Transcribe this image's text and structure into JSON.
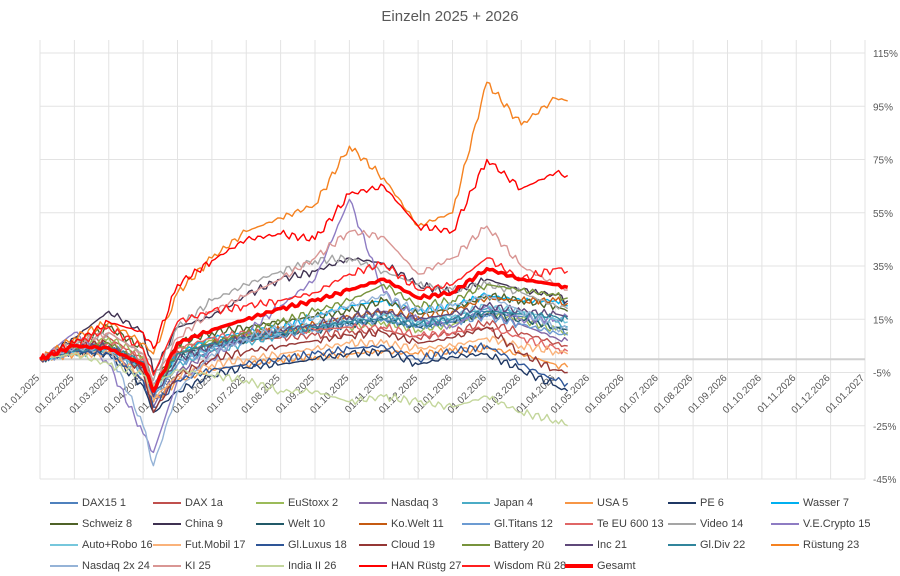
{
  "chart_data": {
    "type": "line",
    "title": "Einzeln 2025 + 2026",
    "xlabel": "",
    "ylabel": "",
    "ylim": [
      -45,
      115
    ],
    "yticks": [
      "115%",
      "95%",
      "75%",
      "55%",
      "35%",
      "15%",
      "-5%",
      "-25%",
      "-45%"
    ],
    "ytick_values": [
      115,
      95,
      75,
      55,
      35,
      15,
      -5,
      -25,
      -45
    ],
    "xticks": [
      "01.01.2025",
      "01.02.2025",
      "01.03.2025",
      "01.04.2025",
      "01.05.2025",
      "01.06.2025",
      "01.07.2025",
      "01.08.2025",
      "01.09.2025",
      "01.10.2025",
      "01.11.2025",
      "01.12.2025",
      "01.01.2026",
      "01.02.2026",
      "01.03.2026",
      "01.04.2026",
      "01.05.2026",
      "01.06.2026",
      "01.07.2026",
      "01.08.2026",
      "01.09.2026",
      "01.10.2026",
      "01.11.2026",
      "01.12.2026",
      "01.01.2027"
    ],
    "x_months": [
      0,
      1,
      2,
      3,
      3.3,
      4,
      5,
      6,
      7,
      8,
      9,
      10,
      11,
      12,
      13,
      14,
      15,
      15.35
    ],
    "grid": true,
    "legend_position": "bottom",
    "series": [
      {
        "name": "DAX15  1",
        "color": "#4f81bd",
        "values": [
          0,
          4,
          6,
          -3,
          -10,
          2,
          6,
          8,
          10,
          12,
          14,
          15,
          12,
          14,
          18,
          16,
          12,
          10
        ]
      },
      {
        "name": "DAX  1a",
        "color": "#c0504d",
        "values": [
          0,
          5,
          8,
          0,
          -12,
          3,
          6,
          7,
          8,
          9,
          10,
          11,
          8,
          10,
          14,
          10,
          6,
          5
        ]
      },
      {
        "name": "EuStoxx 2",
        "color": "#9bbb59",
        "values": [
          0,
          4,
          8,
          1,
          -10,
          4,
          7,
          8,
          10,
          11,
          12,
          14,
          11,
          13,
          17,
          15,
          11,
          10
        ]
      },
      {
        "name": "Nasdaq 3",
        "color": "#8064a2",
        "values": [
          0,
          3,
          4,
          -8,
          -18,
          -5,
          3,
          8,
          10,
          12,
          15,
          18,
          14,
          15,
          17,
          13,
          8,
          7
        ]
      },
      {
        "name": "Japan 4",
        "color": "#4bacc6",
        "values": [
          0,
          2,
          3,
          -5,
          -14,
          -2,
          3,
          6,
          9,
          12,
          14,
          17,
          14,
          16,
          19,
          17,
          14,
          12
        ]
      },
      {
        "name": "USA 5",
        "color": "#f79646",
        "values": [
          0,
          2,
          3,
          -8,
          -16,
          -8,
          -4,
          -2,
          0,
          1,
          2,
          3,
          2,
          3,
          4,
          2,
          -2,
          -3
        ]
      },
      {
        "name": "PE 6",
        "color": "#1f3864",
        "values": [
          0,
          3,
          2,
          -10,
          -20,
          -12,
          -6,
          -3,
          -2,
          0,
          2,
          3,
          -2,
          1,
          2,
          -4,
          -10,
          -12
        ]
      },
      {
        "name": "Wasser  7",
        "color": "#00b0f0",
        "values": [
          0,
          3,
          4,
          -2,
          -10,
          2,
          8,
          10,
          12,
          16,
          20,
          22,
          18,
          20,
          24,
          22,
          22,
          20
        ]
      },
      {
        "name": "Schweiz 8",
        "color": "#4f6228",
        "values": [
          0,
          6,
          12,
          4,
          -10,
          6,
          10,
          12,
          14,
          16,
          18,
          22,
          17,
          19,
          24,
          22,
          20,
          18
        ]
      },
      {
        "name": "China  9",
        "color": "#3f3151",
        "values": [
          0,
          8,
          18,
          10,
          -5,
          12,
          16,
          24,
          30,
          33,
          38,
          36,
          28,
          25,
          30,
          26,
          24,
          22
        ]
      },
      {
        "name": "Welt 10",
        "color": "#215968",
        "values": [
          0,
          3,
          4,
          -3,
          -12,
          0,
          5,
          7,
          9,
          11,
          13,
          15,
          12,
          14,
          17,
          15,
          12,
          11
        ]
      },
      {
        "name": "Ko.Welt 11",
        "color": "#c55a11",
        "values": [
          0,
          3,
          4,
          -2,
          -12,
          2,
          6,
          9,
          11,
          13,
          16,
          18,
          16,
          18,
          23,
          22,
          22,
          21
        ]
      },
      {
        "name": "Gl.Titans 12",
        "color": "#6c9bd2",
        "values": [
          0,
          3,
          4,
          -5,
          -15,
          -2,
          4,
          7,
          9,
          11,
          13,
          15,
          12,
          14,
          16,
          13,
          10,
          9
        ]
      },
      {
        "name": "Te EU 600 13",
        "color": "#e06666",
        "values": [
          0,
          4,
          6,
          0,
          -10,
          4,
          8,
          10,
          10,
          11,
          12,
          12,
          9,
          10,
          12,
          8,
          4,
          3
        ]
      },
      {
        "name": "Video 14",
        "color": "#a5a5a5",
        "values": [
          0,
          6,
          10,
          2,
          -8,
          12,
          22,
          28,
          33,
          37,
          38,
          33,
          28,
          26,
          28,
          25,
          20,
          19
        ]
      },
      {
        "name": "V.E.Crypto 15",
        "color": "#8e7cc3",
        "values": [
          0,
          10,
          -2,
          -28,
          -35,
          -8,
          0,
          10,
          20,
          30,
          60,
          25,
          15,
          12,
          20,
          15,
          15,
          16
        ]
      },
      {
        "name": "Auto+Robo 16",
        "color": "#76c7dc",
        "values": [
          0,
          3,
          4,
          -4,
          -13,
          0,
          5,
          8,
          10,
          13,
          15,
          17,
          14,
          16,
          20,
          18,
          15,
          14
        ]
      },
      {
        "name": "Fut.Mobil 17",
        "color": "#fab27a",
        "values": [
          0,
          2,
          2,
          -6,
          -15,
          -6,
          -2,
          0,
          2,
          4,
          6,
          6,
          4,
          5,
          8,
          5,
          3,
          2
        ]
      },
      {
        "name": "Gl.Luxus 18",
        "color": "#2e5597",
        "values": [
          0,
          3,
          2,
          -8,
          -18,
          -8,
          -4,
          -2,
          0,
          2,
          4,
          5,
          0,
          3,
          5,
          -2,
          -8,
          -9
        ]
      },
      {
        "name": "Cloud 19",
        "color": "#953735",
        "values": [
          0,
          5,
          6,
          -5,
          -20,
          -6,
          0,
          3,
          5,
          7,
          9,
          10,
          6,
          8,
          12,
          2,
          -4,
          -5
        ]
      },
      {
        "name": "Battery 20",
        "color": "#77933c",
        "values": [
          0,
          4,
          6,
          -2,
          -12,
          2,
          6,
          10,
          14,
          18,
          22,
          28,
          20,
          22,
          28,
          26,
          24,
          23
        ]
      },
      {
        "name": "Inc 21",
        "color": "#5f497a",
        "values": [
          0,
          4,
          5,
          -3,
          -14,
          0,
          5,
          8,
          11,
          13,
          16,
          18,
          15,
          17,
          20,
          18,
          17,
          16
        ]
      },
      {
        "name": "Gl.Div 22",
        "color": "#31859c",
        "values": [
          0,
          3,
          4,
          -1,
          -10,
          2,
          6,
          8,
          10,
          12,
          14,
          15,
          13,
          15,
          18,
          17,
          16,
          15
        ]
      },
      {
        "name": "Rüstung 23",
        "color": "#f58220",
        "values": [
          0,
          8,
          14,
          6,
          2,
          25,
          38,
          48,
          53,
          58,
          80,
          68,
          50,
          55,
          104,
          88,
          98,
          97
        ]
      },
      {
        "name": "Nasdaq 2x  24",
        "color": "#95b3d7",
        "values": [
          0,
          4,
          4,
          -25,
          -40,
          -12,
          2,
          8,
          12,
          16,
          20,
          24,
          18,
          20,
          24,
          18,
          12,
          11
        ]
      },
      {
        "name": "KI  25",
        "color": "#d99694",
        "values": [
          0,
          6,
          10,
          2,
          -10,
          8,
          18,
          24,
          30,
          38,
          48,
          46,
          32,
          38,
          50,
          35,
          28,
          26
        ]
      },
      {
        "name": "India II  26",
        "color": "#c3d69b",
        "values": [
          0,
          2,
          -2,
          -6,
          -10,
          -4,
          -6,
          -8,
          -12,
          -12,
          -16,
          -14,
          -16,
          -18,
          -14,
          -20,
          -23,
          -25
        ]
      },
      {
        "name": "HAN Rüstg 27",
        "color": "#ff0000",
        "values": [
          0,
          6,
          14,
          10,
          4,
          28,
          37,
          45,
          47,
          45,
          62,
          65,
          50,
          48,
          75,
          64,
          70,
          69
        ]
      },
      {
        "name": "Wisdom Rü 28",
        "color": "#ff1f1f",
        "values": [
          0,
          5,
          12,
          4,
          -6,
          14,
          18,
          20,
          22,
          25,
          32,
          36,
          26,
          28,
          38,
          30,
          34,
          33
        ]
      },
      {
        "name": "Gesamt",
        "color": "#ff0000",
        "bold": true,
        "values": [
          0,
          5,
          4,
          -2,
          -12,
          6,
          11,
          15,
          19,
          22,
          26,
          30,
          23,
          25,
          34,
          30,
          28,
          27
        ]
      }
    ]
  }
}
